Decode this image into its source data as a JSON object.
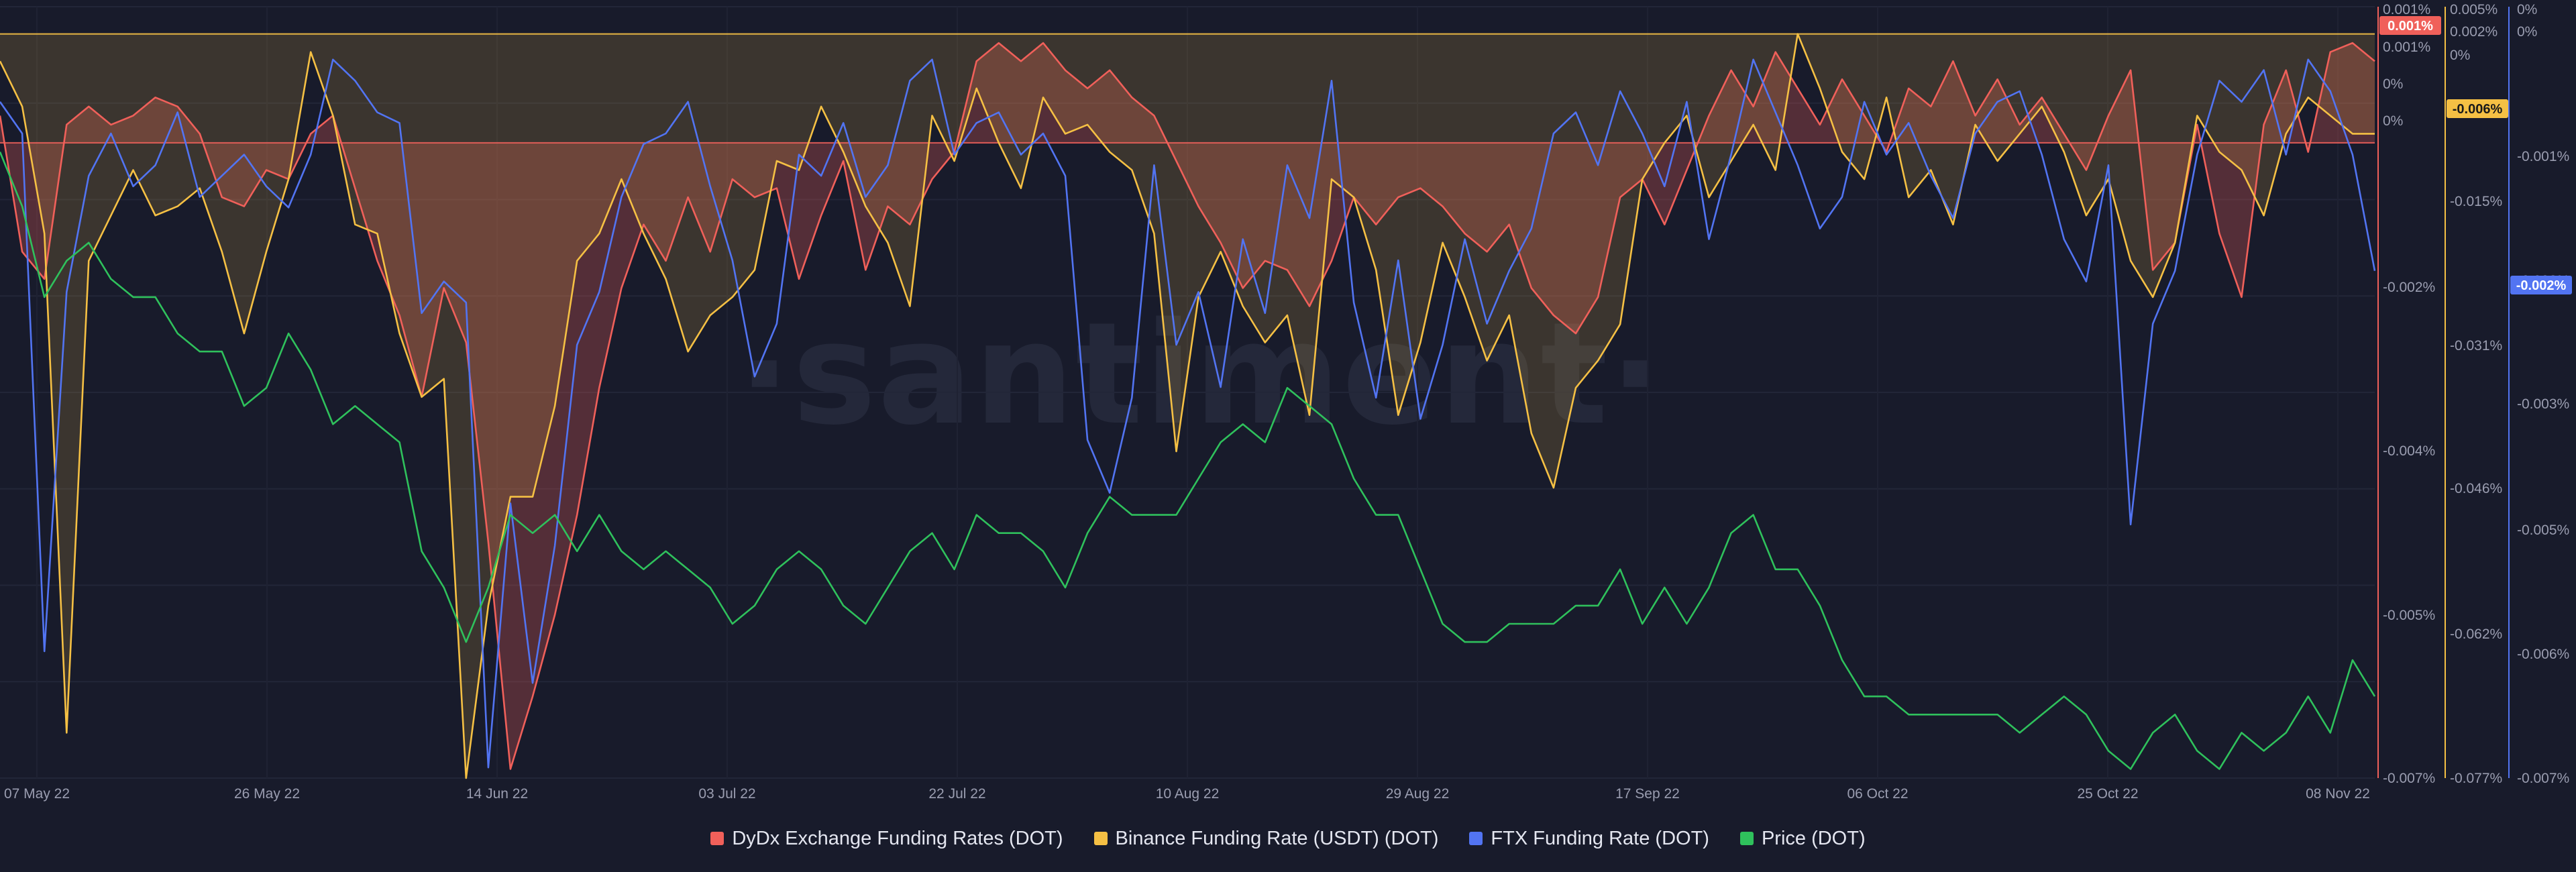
{
  "watermark": "·santiment·",
  "legend": [
    {
      "label": "DyDx Exchange Funding Rates (DOT)",
      "color": "#f0605a"
    },
    {
      "label": "Binance Funding Rate (USDT) (DOT)",
      "color": "#f5c044"
    },
    {
      "label": "FTX Funding Rate (DOT)",
      "color": "#5274f2"
    },
    {
      "label": "Price (DOT)",
      "color": "#2fc15c"
    }
  ],
  "chart_data": {
    "type": "line",
    "title": "",
    "x_ticks": [
      "07 May 22",
      "26 May 22",
      "14 Jun 22",
      "03 Jul 22",
      "22 Jul 22",
      "10 Aug 22",
      "29 Aug 22",
      "17 Sep 22",
      "06 Oct 22",
      "25 Oct 22",
      "08 Nov 22"
    ],
    "axes": {
      "dydx": {
        "color": "#f0605a",
        "ylim": [
          -0.007,
          0.0015
        ],
        "ticks": [
          "0.001%",
          "0.001%",
          "0.001%",
          "0%",
          "0%",
          "-0.002%",
          "-0.004%",
          "-0.005%",
          "-0.007%"
        ],
        "current_badge": "0.001%"
      },
      "binance": {
        "color": "#f5c044",
        "ylim": [
          -0.077,
          0.008
        ],
        "ticks": [
          "0.005%",
          "0.002%",
          "0%",
          "-0.015%",
          "-0.031%",
          "-0.046%",
          "-0.062%",
          "-0.077%"
        ],
        "current_badge": "-0.006%"
      },
      "ftx": {
        "color": "#5274f2",
        "ylim": [
          -0.007,
          0.0003
        ],
        "ticks": [
          "0%",
          "0%",
          "-0.001%",
          "-0.002%",
          "-0.003%",
          "-0.005%",
          "-0.006%",
          "-0.007%"
        ],
        "current_badge": "-0.002%"
      }
    },
    "series": [
      {
        "name": "DyDx Exchange Funding Rates (DOT)",
        "axis": "dydx",
        "color": "#f0605a",
        "values": [
          0.0003,
          -0.0012,
          -0.0015,
          0.0002,
          0.0004,
          0.0002,
          0.0003,
          0.0005,
          0.0004,
          0.0001,
          -0.0006,
          -0.0007,
          -0.0003,
          -0.0004,
          0.0001,
          0.0003,
          -0.0005,
          -0.0013,
          -0.0019,
          -0.0028,
          -0.0016,
          -0.0022,
          -0.0044,
          -0.0069,
          -0.0061,
          -0.0052,
          -0.0041,
          -0.0027,
          -0.0016,
          -0.0009,
          -0.0013,
          -0.0006,
          -0.0012,
          -0.0004,
          -0.0006,
          -0.0005,
          -0.0015,
          -0.0008,
          -0.0002,
          -0.0014,
          -0.0007,
          -0.0009,
          -0.0004,
          -0.0001,
          0.0009,
          0.0011,
          0.0009,
          0.0011,
          0.0008,
          0.0006,
          0.0008,
          0.0005,
          0.0003,
          -0.0002,
          -0.0007,
          -0.0011,
          -0.0016,
          -0.0013,
          -0.0014,
          -0.0018,
          -0.0013,
          -0.0006,
          -0.0009,
          -0.0006,
          -0.0005,
          -0.0007,
          -0.001,
          -0.0012,
          -0.0009,
          -0.0016,
          -0.0019,
          -0.0021,
          -0.0017,
          -0.0006,
          -0.0004,
          -0.0009,
          -0.0003,
          0.0003,
          0.0008,
          0.0004,
          0.001,
          0.0006,
          0.0002,
          0.0007,
          0.0003,
          -0.0001,
          0.0006,
          0.0004,
          0.0009,
          0.0003,
          0.0007,
          0.0002,
          0.0005,
          0.0001,
          -0.0003,
          0.0003,
          0.0008,
          -0.0014,
          -0.0011,
          0.0002,
          -0.001,
          -0.0017,
          0.0002,
          0.0008,
          -0.0001,
          0.001,
          0.0011,
          0.0009
        ],
        "fill": true
      },
      {
        "name": "Binance Funding Rate (USDT) (DOT)",
        "axis": "binance",
        "color": "#f5c044",
        "values": [
          0.002,
          -0.003,
          -0.017,
          -0.072,
          -0.02,
          -0.015,
          -0.01,
          -0.015,
          -0.014,
          -0.012,
          -0.019,
          -0.028,
          -0.019,
          -0.011,
          0.003,
          -0.004,
          -0.016,
          -0.017,
          -0.028,
          -0.035,
          -0.033,
          -0.077,
          -0.058,
          -0.046,
          -0.046,
          -0.036,
          -0.02,
          -0.017,
          -0.011,
          -0.017,
          -0.022,
          -0.03,
          -0.026,
          -0.024,
          -0.021,
          -0.009,
          -0.01,
          -0.003,
          -0.008,
          -0.014,
          -0.018,
          -0.025,
          -0.004,
          -0.009,
          -0.001,
          -0.007,
          -0.012,
          -0.002,
          -0.006,
          -0.005,
          -0.008,
          -0.01,
          -0.017,
          -0.041,
          -0.024,
          -0.019,
          -0.025,
          -0.029,
          -0.026,
          -0.037,
          -0.011,
          -0.013,
          -0.021,
          -0.037,
          -0.029,
          -0.018,
          -0.024,
          -0.031,
          -0.026,
          -0.039,
          -0.045,
          -0.034,
          -0.031,
          -0.027,
          -0.011,
          -0.007,
          -0.004,
          -0.013,
          -0.009,
          -0.005,
          -0.01,
          0.005,
          -0.001,
          -0.008,
          -0.011,
          -0.002,
          -0.013,
          -0.01,
          -0.016,
          -0.005,
          -0.009,
          -0.006,
          -0.003,
          -0.008,
          -0.015,
          -0.011,
          -0.02,
          -0.024,
          -0.018,
          -0.004,
          -0.008,
          -0.01,
          -0.015,
          -0.006,
          -0.002,
          -0.004,
          -0.006,
          -0.006
        ],
        "fill": true
      },
      {
        "name": "FTX Funding Rate (DOT)",
        "axis": "ftx",
        "color": "#5274f2",
        "values": [
          -0.0006,
          -0.0009,
          -0.0058,
          -0.0024,
          -0.0013,
          -0.0009,
          -0.0014,
          -0.0012,
          -0.0007,
          -0.0015,
          -0.0013,
          -0.0011,
          -0.0014,
          -0.0016,
          -0.0011,
          -0.0002,
          -0.0004,
          -0.0007,
          -0.0008,
          -0.0026,
          -0.0023,
          -0.0025,
          -0.0069,
          -0.0044,
          -0.0061,
          -0.0048,
          -0.0029,
          -0.0024,
          -0.0015,
          -0.001,
          -0.0009,
          -0.0006,
          -0.0014,
          -0.0021,
          -0.0032,
          -0.0027,
          -0.0011,
          -0.0013,
          -0.0008,
          -0.0015,
          -0.0012,
          -0.0004,
          -0.0002,
          -0.0011,
          -0.0008,
          -0.0007,
          -0.0011,
          -0.0009,
          -0.0013,
          -0.0038,
          -0.0043,
          -0.0034,
          -0.0012,
          -0.0029,
          -0.0024,
          -0.0033,
          -0.0019,
          -0.0026,
          -0.0012,
          -0.0017,
          -0.0004,
          -0.0025,
          -0.0034,
          -0.0021,
          -0.0036,
          -0.0029,
          -0.0019,
          -0.0027,
          -0.0022,
          -0.0018,
          -0.0009,
          -0.0007,
          -0.0012,
          -0.0005,
          -0.0009,
          -0.0014,
          -0.0006,
          -0.0019,
          -0.0011,
          -0.0002,
          -0.0007,
          -0.0012,
          -0.0018,
          -0.0015,
          -0.0006,
          -0.0011,
          -0.0008,
          -0.0013,
          -0.0017,
          -0.0009,
          -0.0006,
          -0.0005,
          -0.0011,
          -0.0019,
          -0.0023,
          -0.0012,
          -0.0046,
          -0.0027,
          -0.0022,
          -0.0011,
          -0.0004,
          -0.0006,
          -0.0003,
          -0.0011,
          -0.0002,
          -0.0005,
          -0.0011,
          -0.0022
        ],
        "fill": false
      },
      {
        "name": "Price (DOT)",
        "axis": "price",
        "color": "#2fc15c",
        "values": [
          8.6,
          8.3,
          7.8,
          8.0,
          8.1,
          7.9,
          7.8,
          7.8,
          7.6,
          7.5,
          7.5,
          7.2,
          7.3,
          7.6,
          7.4,
          7.1,
          7.2,
          7.1,
          7.0,
          6.4,
          6.2,
          5.9,
          6.2,
          6.6,
          6.5,
          6.6,
          6.4,
          6.6,
          6.4,
          6.3,
          6.4,
          6.3,
          6.2,
          6.0,
          6.1,
          6.3,
          6.4,
          6.3,
          6.1,
          6.0,
          6.2,
          6.4,
          6.5,
          6.3,
          6.6,
          6.5,
          6.5,
          6.4,
          6.2,
          6.5,
          6.7,
          6.6,
          6.6,
          6.6,
          6.8,
          7.0,
          7.1,
          7.0,
          7.3,
          7.2,
          7.1,
          6.8,
          6.6,
          6.6,
          6.3,
          6.0,
          5.9,
          5.9,
          6.0,
          6.0,
          6.0,
          6.1,
          6.1,
          6.3,
          6.0,
          6.2,
          6.0,
          6.2,
          6.5,
          6.6,
          6.3,
          6.3,
          6.1,
          5.8,
          5.6,
          5.6,
          5.5,
          5.5,
          5.5,
          5.5,
          5.5,
          5.4,
          5.5,
          5.6,
          5.5,
          5.3,
          5.2,
          5.4,
          5.5,
          5.3,
          5.2,
          5.4,
          5.3,
          5.4,
          5.6,
          5.4,
          5.8,
          5.6
        ],
        "fill": false
      }
    ],
    "reference_lines": [
      {
        "axis": "binance",
        "value": 0.005,
        "color": "#f5c044"
      },
      {
        "axis": "dydx",
        "value": 0.0,
        "color": "#f0605a"
      }
    ]
  }
}
